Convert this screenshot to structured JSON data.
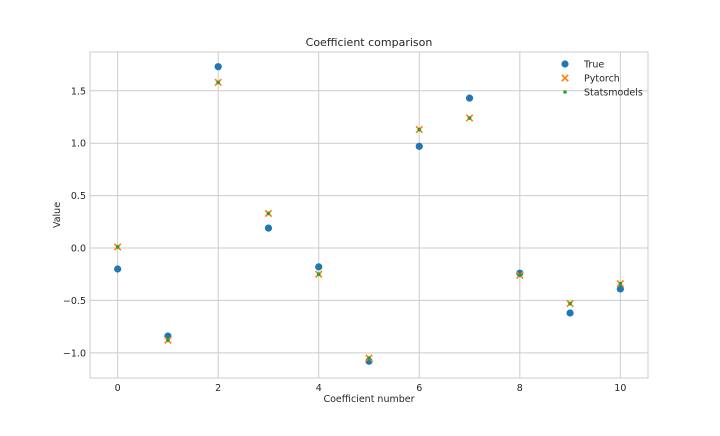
{
  "chart_data": {
    "type": "scatter",
    "title": "Coefficient comparison",
    "xlabel": "Coefficient number",
    "ylabel": "Value",
    "xlim": [
      -0.55,
      10.55
    ],
    "ylim": [
      -1.24,
      1.87
    ],
    "xticks": [
      0,
      2,
      4,
      6,
      8,
      10
    ],
    "xtick_labels": [
      "0",
      "2",
      "4",
      "6",
      "8",
      "10"
    ],
    "yticks": [
      -1.0,
      -0.5,
      0.0,
      0.5,
      1.0,
      1.5
    ],
    "ytick_labels": [
      "−1.0",
      "−0.5",
      "0.0",
      "0.5",
      "1.0",
      "1.5"
    ],
    "grid": true,
    "legend_position": "top-right",
    "x": [
      0,
      1,
      2,
      3,
      4,
      5,
      6,
      7,
      8,
      9,
      10
    ],
    "series": [
      {
        "name": "True",
        "marker": "circle",
        "color": "#1f77b4",
        "values": [
          -0.2,
          -0.84,
          1.73,
          0.19,
          -0.18,
          -1.08,
          0.97,
          1.43,
          -0.24,
          -0.62,
          -0.39
        ]
      },
      {
        "name": "Pytorch",
        "marker": "x",
        "color": "#ff7f0e",
        "values": [
          0.01,
          -0.88,
          1.58,
          0.33,
          -0.25,
          -1.05,
          1.13,
          1.24,
          -0.26,
          -0.53,
          -0.34
        ]
      },
      {
        "name": "Statsmodels",
        "marker": "dot",
        "color": "#2ca02c",
        "values": [
          0.01,
          -0.88,
          1.58,
          0.33,
          -0.25,
          -1.05,
          1.13,
          1.24,
          -0.26,
          -0.53,
          -0.34
        ]
      }
    ]
  }
}
